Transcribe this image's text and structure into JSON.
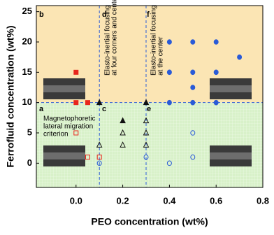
{
  "chart_data": {
    "type": "scatter",
    "xlabel": "PEO concentration (wt%)",
    "ylabel": "Ferrofluid concentration (wt%)",
    "xlim": [
      -0.17,
      0.8
    ],
    "ylim": [
      -4,
      26
    ],
    "xticks": [
      {
        "value": 0,
        "label": "0.0"
      },
      0.2,
      0.4,
      0.6,
      0.8
    ],
    "yticks": [
      0,
      5,
      10,
      15,
      20,
      25
    ],
    "hlines": [
      10
    ],
    "vlines": [
      0.1,
      0.3
    ],
    "region_colors": [
      "#fbe5b4",
      "#d8f1c9"
    ],
    "series": [
      {
        "marker": "square",
        "filled": true,
        "color": "#e8261c",
        "x": [
          0,
          0,
          0.05
        ],
        "y": [
          15,
          10,
          10
        ]
      },
      {
        "marker": "triangle",
        "filled": true,
        "color": "#111111",
        "x": [
          0.1,
          0.3,
          0.2
        ],
        "y": [
          10,
          10,
          7
        ]
      },
      {
        "marker": "circle",
        "filled": true,
        "color": "#2a5bd7",
        "x": [
          0.4,
          0.5,
          0.6,
          0.4,
          0.5,
          0.6,
          0.7,
          0.5,
          0.4,
          0.5,
          0.6
        ],
        "y": [
          20,
          20,
          20,
          15,
          15,
          15,
          17.5,
          12.5,
          10,
          10,
          10
        ]
      },
      {
        "marker": "square",
        "filled": false,
        "color": "#e8261c",
        "x": [
          0,
          0.05,
          0.1
        ],
        "y": [
          5,
          1,
          1
        ]
      },
      {
        "marker": "triangle",
        "filled": false,
        "color": "#111111",
        "x": [
          0.1,
          0.2,
          0.2,
          0.3,
          0.3,
          0.3
        ],
        "y": [
          3,
          5,
          3,
          7,
          5,
          3
        ]
      },
      {
        "marker": "circle",
        "filled": false,
        "color": "#2a5bd7",
        "x": [
          0.1,
          0.3,
          0.4,
          0.5,
          0.5
        ],
        "y": [
          0,
          1,
          0,
          5,
          1
        ]
      }
    ],
    "annotations": [
      [
        "a"
      ],
      [
        "b"
      ],
      [
        "c"
      ],
      [
        "d"
      ],
      [
        "e"
      ],
      [
        "f"
      ],
      [
        "Magnetophoretic",
        "lateral migration",
        "criterion"
      ],
      [
        "Elasto-inertial focusing",
        "at four corners and center"
      ],
      [
        "Elasto-inertial focusing",
        "at the center"
      ]
    ]
  }
}
